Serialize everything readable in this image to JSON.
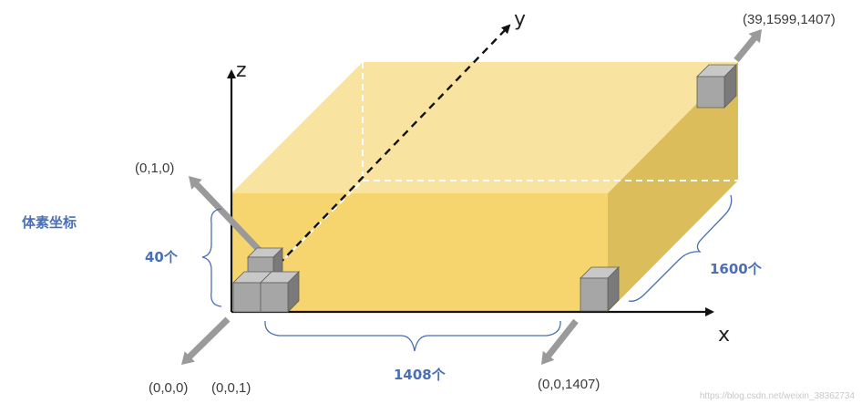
{
  "colors": {
    "front_face": "#f6d56f",
    "top_face": "#f9e3a0",
    "side_face": "#dcbd5c",
    "label_blue": "#4a6fb5",
    "arrow_grey": "#9a9a9a",
    "cube_front": "#a6a6a6",
    "cube_top": "#c8c8c8",
    "cube_side": "#7a7a7a"
  },
  "axes": {
    "x": "x",
    "y": "y",
    "z": "z"
  },
  "labels": {
    "title": "体素坐标",
    "count_z": "40个",
    "count_x": "1408个",
    "count_y": "1600个"
  },
  "coordinates": {
    "origin": "(0,0,0)",
    "next_x": "(0,0,1)",
    "next_z": "(0,1,0)",
    "end_x": "(0,0,1407)",
    "far_corner": "(39,1599,1407)"
  },
  "watermark": "https://blog.csdn.net/weixin_38362734"
}
